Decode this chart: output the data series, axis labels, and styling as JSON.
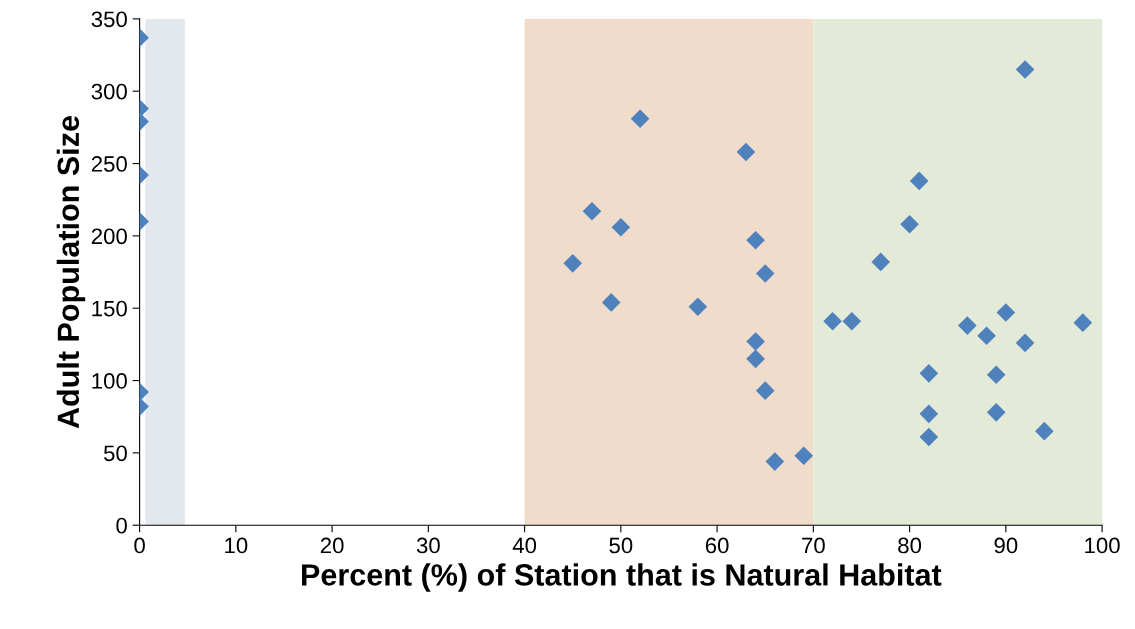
{
  "chart_data": {
    "type": "scatter",
    "xlabel": "Percent (%) of Station that is Natural Habitat",
    "ylabel": "Adult Population Size",
    "x": [
      0,
      0,
      0,
      0,
      0,
      0,
      0,
      45,
      47,
      49,
      50,
      52,
      58,
      63,
      64,
      64,
      64,
      65,
      65,
      66,
      69,
      72,
      74,
      77,
      80,
      81,
      82,
      82,
      82,
      86,
      88,
      89,
      89,
      90,
      92,
      92,
      94,
      98
    ],
    "series": [
      {
        "color": "#4f81bd",
        "values": [
          337,
          288,
          279,
          242,
          210,
          92,
          82,
          181,
          217,
          154,
          206,
          281,
          151,
          258,
          197,
          127,
          115,
          174,
          93,
          44,
          48,
          141,
          141,
          182,
          208,
          238,
          105,
          77,
          61,
          138,
          131,
          104,
          78,
          147,
          315,
          126,
          65,
          140
        ]
      }
    ],
    "marker": "diamond",
    "grid": false,
    "xlim": [
      0,
      100
    ],
    "xticks": [
      0,
      10,
      20,
      30,
      40,
      50,
      60,
      70,
      80,
      90,
      100
    ],
    "ylim": [
      0,
      350
    ],
    "yticks": [
      0,
      50,
      100,
      150,
      200,
      250,
      300,
      350
    ],
    "bands": [
      {
        "axis": "x",
        "from": 0.6,
        "to": 4.7,
        "color": "#e3e8ef"
      },
      {
        "axis": "x",
        "from": 40,
        "to": 70,
        "color": "#f0dccb"
      },
      {
        "axis": "x",
        "from": 70,
        "to": 100,
        "color": "#e3ebd8"
      }
    ]
  }
}
